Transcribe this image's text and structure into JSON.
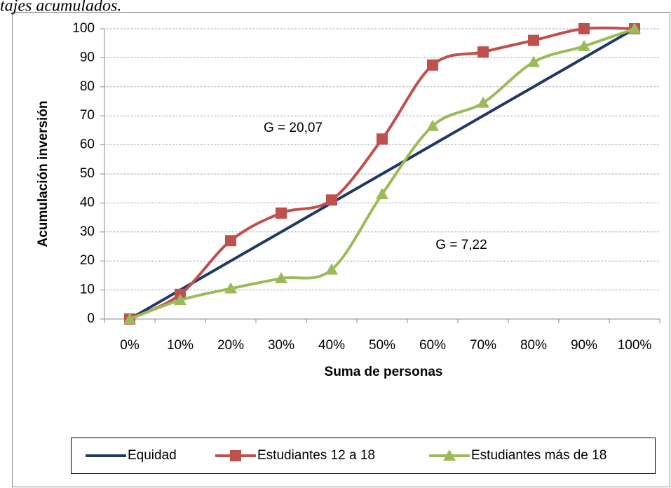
{
  "caption": "tajes acumulados.",
  "chart_data": {
    "type": "line",
    "x_label": "Suma de personas",
    "y_label": "Acumulación inversión",
    "categories": [
      "0%",
      "10%",
      "20%",
      "30%",
      "40%",
      "50%",
      "60%",
      "70%",
      "80%",
      "90%",
      "100%"
    ],
    "series": [
      {
        "name": "Equidad",
        "color": "#1f3864",
        "marker": "none",
        "smooth": false,
        "values": [
          0,
          10,
          20,
          30,
          40,
          50,
          60,
          70,
          80,
          90,
          100
        ]
      },
      {
        "name": "Estudiantes 12 a 18",
        "color": "#c0504d",
        "marker": "square",
        "smooth": true,
        "values": [
          0,
          8.5,
          27,
          36.5,
          41,
          62,
          87.5,
          92,
          96,
          100,
          100
        ]
      },
      {
        "name": "Estudiantes más de 18",
        "color": "#9bbb59",
        "marker": "triangle",
        "smooth": true,
        "values": [
          0,
          6.5,
          10.5,
          14,
          17,
          43,
          66.5,
          74.5,
          88.5,
          94,
          100
        ]
      }
    ],
    "annotations": [
      "G = 20,07",
      "G = 7,22"
    ],
    "ylim": [
      0,
      100
    ],
    "yticks": [
      0,
      10,
      20,
      30,
      40,
      50,
      60,
      70,
      80,
      90,
      100
    ],
    "grid": true,
    "legend": "bottom"
  }
}
